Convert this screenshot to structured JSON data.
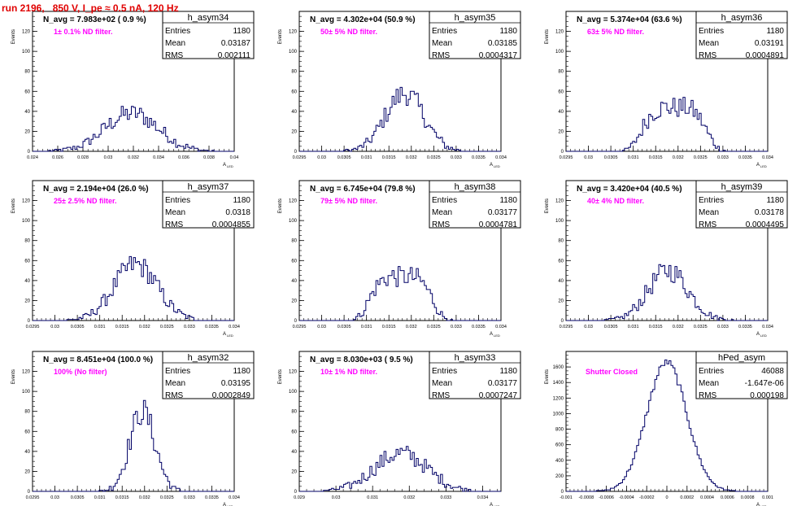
{
  "title": "run 2196,   850 V, I_pe ≈ 0.5 nA, 120 Hz",
  "y_axis_label": "Events",
  "x_axis_label": "A",
  "x_axis_subscript": "LED",
  "stats_labels": {
    "entries": "Entries",
    "mean": "Mean",
    "rms": "RMS"
  },
  "colors": {
    "title": "#e00000",
    "annotation": "#ff00ff",
    "histogram": "#000066",
    "axis": "#000000"
  },
  "chart_data": [
    {
      "type": "histogram",
      "name": "h_asym34",
      "navg": "N_avg = 7.983e+02 ( 0.9 %)",
      "note": "1± 0.1% ND filter.",
      "entries": "1180",
      "mean": "0.03187",
      "rms": "0.002111",
      "mu": 0.03187,
      "sigma": 0.002111,
      "xlim": [
        0.024,
        0.04
      ],
      "ylim": [
        0,
        140
      ],
      "shape": "broad",
      "xticks": [
        "0.024",
        "0.026",
        "0.028",
        "0.03",
        "0.032",
        "0.034",
        "0.036",
        "0.038",
        "0.04"
      ],
      "xtick_values": [
        0.024,
        0.026,
        0.028,
        0.03,
        0.032,
        0.034,
        0.036,
        0.038,
        0.04
      ],
      "yticks": [
        0,
        20,
        40,
        60,
        80,
        100,
        120
      ],
      "peak": 38
    },
    {
      "type": "histogram",
      "name": "h_asym35",
      "navg": "N_avg = 4.302e+04 (50.9 %)",
      "note": "50± 5% ND filter.",
      "entries": "1180",
      "mean": "0.03185",
      "rms": "0.0004317",
      "mu": 0.03185,
      "sigma": 0.0004317,
      "xlim": [
        0.0295,
        0.034
      ],
      "ylim": [
        0,
        140
      ],
      "shape": "normal",
      "xticks": [
        "0.0295",
        "0.03",
        "0.0305",
        "0.031",
        "0.0315",
        "0.032",
        "0.0325",
        "0.033",
        "0.0335",
        "0.034"
      ],
      "xtick_values": [
        0.0295,
        0.03,
        0.0305,
        0.031,
        0.0315,
        0.032,
        0.0325,
        0.033,
        0.0335,
        0.034
      ],
      "yticks": [
        0,
        20,
        40,
        60,
        80,
        100,
        120
      ],
      "peak": 58
    },
    {
      "type": "histogram",
      "name": "h_asym36",
      "navg": "N_avg = 5.374e+04 (63.6 %)",
      "note": "63± 5% ND filter.",
      "entries": "1180",
      "mean": "0.03191",
      "rms": "0.0004891",
      "mu": 0.03191,
      "sigma": 0.0004891,
      "xlim": [
        0.0295,
        0.034
      ],
      "ylim": [
        0,
        140
      ],
      "shape": "flat",
      "xticks": [
        "0.0295",
        "0.03",
        "0.0305",
        "0.031",
        "0.0315",
        "0.032",
        "0.0325",
        "0.033",
        "0.0335",
        "0.034"
      ],
      "xtick_values": [
        0.0295,
        0.03,
        0.0305,
        0.031,
        0.0315,
        0.032,
        0.0325,
        0.033,
        0.0335,
        0.034
      ],
      "yticks": [
        0,
        20,
        40,
        60,
        80,
        100,
        120
      ],
      "peak": 44
    },
    {
      "type": "histogram",
      "name": "h_asym37",
      "navg": "N_avg = 2.194e+04 (26.0 %)",
      "note": "25± 2.5% ND filter.",
      "entries": "1180",
      "mean": "0.0318",
      "rms": "0.0004855",
      "mu": 0.0318,
      "sigma": 0.0004855,
      "xlim": [
        0.0295,
        0.034
      ],
      "ylim": [
        0,
        140
      ],
      "shape": "normal",
      "xticks": [
        "0.0295",
        "0.03",
        "0.0305",
        "0.031",
        "0.0315",
        "0.032",
        "0.0325",
        "0.033",
        "0.0335",
        "0.034"
      ],
      "xtick_values": [
        0.0295,
        0.03,
        0.0305,
        0.031,
        0.0315,
        0.032,
        0.0325,
        0.033,
        0.0335,
        0.034
      ],
      "yticks": [
        0,
        20,
        40,
        60,
        80,
        100,
        120
      ],
      "peak": 56
    },
    {
      "type": "histogram",
      "name": "h_asym38",
      "navg": "N_avg = 6.745e+04 (79.8 %)",
      "note": "79± 5% ND filter.",
      "entries": "1180",
      "mean": "0.03177",
      "rms": "0.0004781",
      "mu": 0.03177,
      "sigma": 0.0004781,
      "xlim": [
        0.0295,
        0.034
      ],
      "ylim": [
        0,
        140
      ],
      "shape": "flat",
      "xticks": [
        "0.0295",
        "0.03",
        "0.0305",
        "0.031",
        "0.0315",
        "0.032",
        "0.0325",
        "0.033",
        "0.0335",
        "0.034"
      ],
      "xtick_values": [
        0.0295,
        0.03,
        0.0305,
        0.031,
        0.0315,
        0.032,
        0.0325,
        0.033,
        0.0335,
        0.034
      ],
      "yticks": [
        0,
        20,
        40,
        60,
        80,
        100,
        120
      ],
      "peak": 44
    },
    {
      "type": "histogram",
      "name": "h_asym39",
      "navg": "N_avg = 3.420e+04 (40.5 %)",
      "note": "40± 4% ND filter.",
      "entries": "1180",
      "mean": "0.03178",
      "rms": "0.0004495",
      "mu": 0.03178,
      "sigma": 0.0004495,
      "xlim": [
        0.0295,
        0.034
      ],
      "ylim": [
        0,
        140
      ],
      "shape": "normal",
      "xticks": [
        "0.0295",
        "0.03",
        "0.0305",
        "0.031",
        "0.0315",
        "0.032",
        "0.0325",
        "0.033",
        "0.0335",
        "0.034"
      ],
      "xtick_values": [
        0.0295,
        0.03,
        0.0305,
        0.031,
        0.0315,
        0.032,
        0.0325,
        0.033,
        0.0335,
        0.034
      ],
      "yticks": [
        0,
        20,
        40,
        60,
        80,
        100,
        120
      ],
      "peak": 50
    },
    {
      "type": "histogram",
      "name": "h_asym32",
      "navg": "N_avg = 8.451e+04 (100.0 %)",
      "note": "100% (No filter)",
      "entries": "1180",
      "mean": "0.03195",
      "rms": "0.0002849",
      "mu": 0.03195,
      "sigma": 0.0002849,
      "xlim": [
        0.0295,
        0.034
      ],
      "ylim": [
        0,
        140
      ],
      "shape": "narrow",
      "xticks": [
        "0.0295",
        "0.03",
        "0.0305",
        "0.031",
        "0.0315",
        "0.032",
        "0.0325",
        "0.033",
        "0.0335",
        "0.034"
      ],
      "xtick_values": [
        0.0295,
        0.03,
        0.0305,
        0.031,
        0.0315,
        0.032,
        0.0325,
        0.033,
        0.0335,
        0.034
      ],
      "yticks": [
        0,
        20,
        40,
        60,
        80,
        100,
        120
      ],
      "peak": 80
    },
    {
      "type": "histogram",
      "name": "h_asym33",
      "navg": "N_avg = 8.030e+03 ( 9.5 %)",
      "note": "10± 1% ND filter.",
      "entries": "1180",
      "mean": "0.03177",
      "rms": "0.0007247",
      "mu": 0.03177,
      "sigma": 0.0007247,
      "xlim": [
        0.029,
        0.0345
      ],
      "ylim": [
        0,
        140
      ],
      "shape": "broad",
      "xticks": [
        "0.029",
        "0.03",
        "0.031",
        "0.032",
        "0.033",
        "0.034"
      ],
      "xtick_values": [
        0.029,
        0.03,
        0.031,
        0.032,
        0.033,
        0.034
      ],
      "yticks": [
        0,
        20,
        40,
        60,
        80,
        100,
        120
      ],
      "peak": 38
    },
    {
      "type": "histogram",
      "name": "hPed_asym",
      "navg": "",
      "note": "Shutter Closed",
      "entries": "46088",
      "mean": "-1.647e-06",
      "rms": "0.000198",
      "mu": -1.6e-06,
      "sigma": 0.000198,
      "xlim": [
        -0.001,
        0.001
      ],
      "ylim": [
        0,
        1800
      ],
      "shape": "normal",
      "xticks": [
        "-0.001",
        "-0.0008",
        "-0.0006",
        "-0.0004",
        "-0.0002",
        "0",
        "0.0002",
        "0.0004",
        "0.0006",
        "0.0008",
        "0.001"
      ],
      "xtick_values": [
        -0.001,
        -0.0008,
        -0.0006,
        -0.0004,
        -0.0002,
        0,
        0.0002,
        0.0004,
        0.0006,
        0.0008,
        0.001
      ],
      "yticks": [
        0,
        200,
        400,
        600,
        800,
        1000,
        1200,
        1400,
        1600
      ],
      "peak": 1660
    }
  ]
}
